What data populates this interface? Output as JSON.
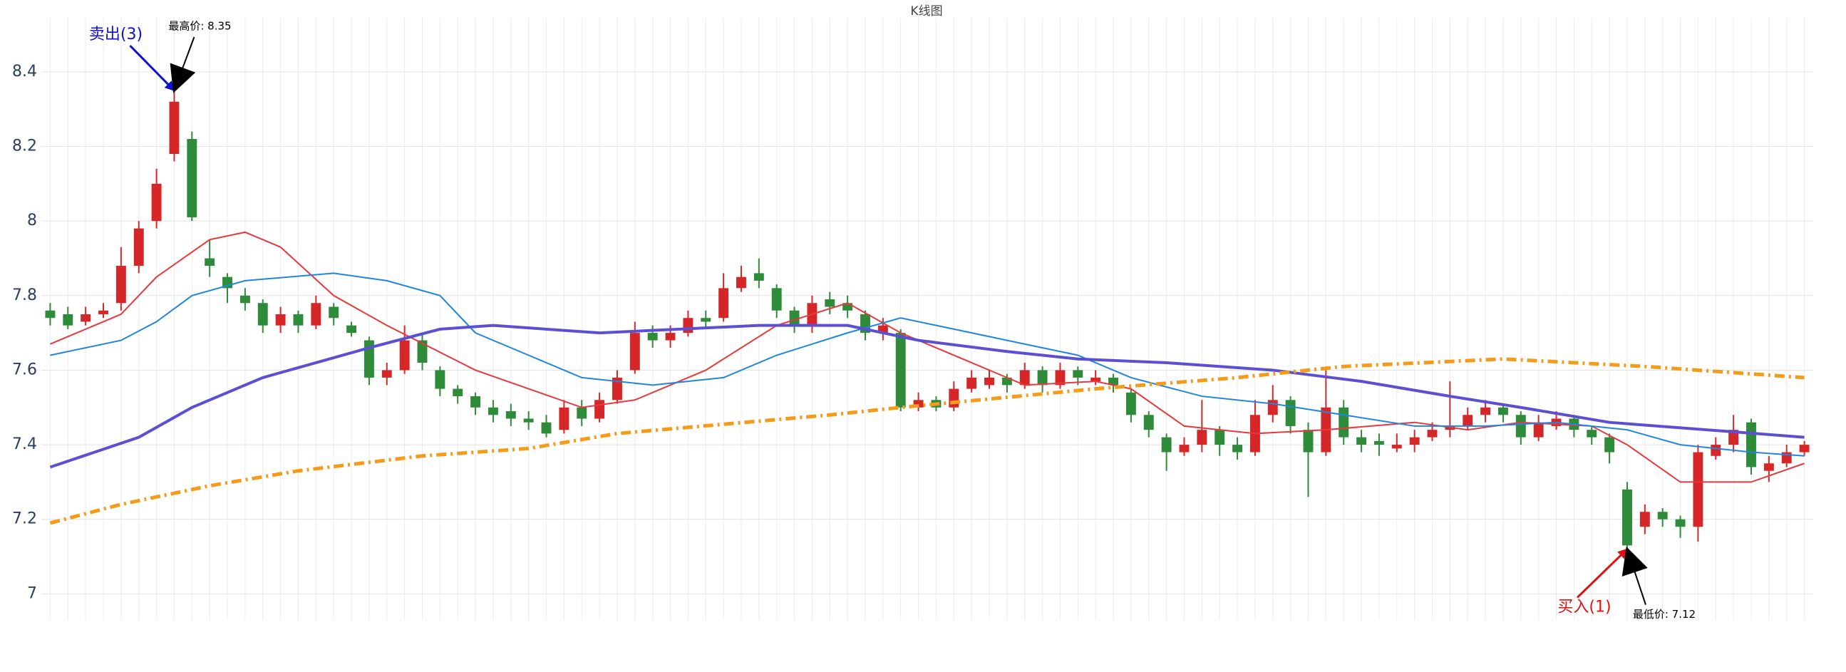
{
  "chart_data": {
    "type": "candlestick",
    "title": "K线图",
    "ylim": [
      6.93,
      8.545
    ],
    "yticks": [
      7,
      7.2,
      7.4,
      7.6,
      7.8,
      8,
      8.2,
      8.4
    ],
    "grid": true,
    "up_color": "#d62728",
    "down_color": "#2e8b3a",
    "open": [
      7.76,
      7.75,
      7.73,
      7.75,
      7.78,
      7.88,
      8.0,
      8.18,
      8.22,
      7.9,
      7.85,
      7.8,
      7.78,
      7.72,
      7.75,
      7.72,
      7.77,
      7.72,
      7.68,
      7.58,
      7.6,
      7.68,
      7.6,
      7.55,
      7.53,
      7.5,
      7.49,
      7.47,
      7.46,
      7.44,
      7.5,
      7.47,
      7.52,
      7.6,
      7.7,
      7.68,
      7.7,
      7.74,
      7.74,
      7.82,
      7.86,
      7.82,
      7.76,
      7.72,
      7.79,
      7.78,
      7.75,
      7.7,
      7.7,
      7.5,
      7.52,
      7.5,
      7.55,
      7.56,
      7.58,
      7.56,
      7.6,
      7.56,
      7.6,
      7.57,
      7.58,
      7.54,
      7.48,
      7.42,
      7.38,
      7.4,
      7.44,
      7.4,
      7.38,
      7.48,
      7.52,
      7.44,
      7.38,
      7.5,
      7.42,
      7.41,
      7.39,
      7.4,
      7.42,
      7.44,
      7.45,
      7.48,
      7.5,
      7.48,
      7.42,
      7.45,
      7.47,
      7.44,
      7.42,
      7.28,
      7.18,
      7.22,
      7.2,
      7.18,
      7.37,
      7.4,
      7.46,
      7.33,
      7.35,
      7.38
    ],
    "high": [
      7.78,
      7.77,
      7.77,
      7.78,
      7.93,
      8.0,
      8.14,
      8.35,
      8.24,
      7.95,
      7.86,
      7.82,
      7.79,
      7.77,
      7.76,
      7.8,
      7.78,
      7.73,
      7.69,
      7.62,
      7.72,
      7.7,
      7.61,
      7.56,
      7.54,
      7.52,
      7.51,
      7.49,
      7.48,
      7.52,
      7.52,
      7.54,
      7.6,
      7.73,
      7.72,
      7.72,
      7.76,
      7.76,
      7.86,
      7.88,
      7.9,
      7.83,
      7.77,
      7.8,
      7.81,
      7.8,
      7.76,
      7.74,
      7.71,
      7.54,
      7.53,
      7.57,
      7.6,
      7.6,
      7.59,
      7.62,
      7.61,
      7.62,
      7.61,
      7.6,
      7.59,
      7.55,
      7.49,
      7.43,
      7.42,
      7.52,
      7.45,
      7.42,
      7.52,
      7.56,
      7.53,
      7.46,
      7.6,
      7.52,
      7.44,
      7.43,
      7.43,
      7.44,
      7.46,
      7.57,
      7.5,
      7.52,
      7.51,
      7.49,
      7.48,
      7.49,
      7.48,
      7.45,
      7.43,
      7.3,
      7.24,
      7.23,
      7.21,
      7.4,
      7.42,
      7.48,
      7.47,
      7.37,
      7.4,
      7.41
    ],
    "low": [
      7.72,
      7.71,
      7.72,
      7.74,
      7.76,
      7.86,
      7.98,
      8.16,
      8.0,
      7.85,
      7.78,
      7.76,
      7.7,
      7.7,
      7.7,
      7.71,
      7.72,
      7.69,
      7.56,
      7.56,
      7.59,
      7.6,
      7.53,
      7.51,
      7.48,
      7.46,
      7.45,
      7.44,
      7.42,
      7.43,
      7.45,
      7.46,
      7.51,
      7.59,
      7.66,
      7.66,
      7.69,
      7.71,
      7.73,
      7.81,
      7.82,
      7.74,
      7.7,
      7.7,
      7.75,
      7.74,
      7.68,
      7.68,
      7.49,
      7.49,
      7.49,
      7.49,
      7.54,
      7.55,
      7.54,
      7.55,
      7.54,
      7.55,
      7.56,
      7.56,
      7.54,
      7.46,
      7.42,
      7.33,
      7.37,
      7.38,
      7.37,
      7.36,
      7.37,
      7.46,
      7.43,
      7.26,
      7.37,
      7.4,
      7.38,
      7.37,
      7.38,
      7.38,
      7.41,
      7.42,
      7.44,
      7.46,
      7.46,
      7.4,
      7.41,
      7.44,
      7.42,
      7.4,
      7.35,
      7.12,
      7.16,
      7.18,
      7.15,
      7.14,
      7.36,
      7.38,
      7.32,
      7.3,
      7.34,
      7.37
    ],
    "close": [
      7.74,
      7.72,
      7.75,
      7.76,
      7.88,
      7.98,
      8.1,
      8.32,
      8.01,
      7.88,
      7.82,
      7.78,
      7.72,
      7.75,
      7.72,
      7.78,
      7.74,
      7.7,
      7.58,
      7.6,
      7.68,
      7.62,
      7.55,
      7.53,
      7.5,
      7.48,
      7.47,
      7.46,
      7.43,
      7.5,
      7.47,
      7.52,
      7.58,
      7.7,
      7.68,
      7.7,
      7.74,
      7.73,
      7.82,
      7.85,
      7.84,
      7.76,
      7.72,
      7.78,
      7.77,
      7.76,
      7.7,
      7.72,
      7.5,
      7.52,
      7.5,
      7.55,
      7.58,
      7.58,
      7.56,
      7.6,
      7.56,
      7.6,
      7.58,
      7.58,
      7.56,
      7.48,
      7.44,
      7.38,
      7.4,
      7.44,
      7.4,
      7.38,
      7.48,
      7.52,
      7.45,
      7.38,
      7.5,
      7.42,
      7.4,
      7.4,
      7.4,
      7.42,
      7.44,
      7.45,
      7.48,
      7.5,
      7.48,
      7.42,
      7.46,
      7.47,
      7.44,
      7.42,
      7.38,
      7.13,
      7.22,
      7.2,
      7.18,
      7.38,
      7.4,
      7.44,
      7.34,
      7.35,
      7.38,
      7.4
    ],
    "lines": [
      {
        "color": "#e8383d",
        "style": "solid",
        "x": [
          0,
          4,
          6,
          9,
          11,
          13,
          16,
          19,
          24,
          30,
          33,
          37,
          41,
          45,
          48,
          52,
          55,
          59,
          61,
          64,
          68,
          72,
          77,
          80,
          83,
          87,
          89,
          92,
          96,
          99
        ],
        "values": [
          7.67,
          7.75,
          7.85,
          7.95,
          7.97,
          7.93,
          7.8,
          7.72,
          7.6,
          7.5,
          7.52,
          7.6,
          7.72,
          7.78,
          7.7,
          7.62,
          7.56,
          7.57,
          7.55,
          7.45,
          7.43,
          7.44,
          7.46,
          7.44,
          7.46,
          7.45,
          7.4,
          7.3,
          7.3,
          7.35
        ]
      },
      {
        "color": "#1f86e0",
        "style": "solid",
        "x": [
          0,
          4,
          6,
          8,
          11,
          16,
          19,
          22,
          24,
          27,
          30,
          34,
          38,
          41,
          45,
          48,
          50,
          54,
          58,
          61,
          65,
          69,
          73,
          77,
          81,
          85,
          89,
          92,
          96,
          99
        ],
        "values": [
          7.64,
          7.68,
          7.73,
          7.8,
          7.84,
          7.86,
          7.84,
          7.8,
          7.7,
          7.64,
          7.58,
          7.56,
          7.58,
          7.64,
          7.7,
          7.74,
          7.72,
          7.68,
          7.64,
          7.58,
          7.53,
          7.51,
          7.48,
          7.45,
          7.45,
          7.46,
          7.44,
          7.4,
          7.38,
          7.37
        ]
      },
      {
        "color": "#5b4fd3",
        "style": "solid",
        "x": [
          0,
          5,
          8,
          12,
          18,
          22,
          25,
          31,
          40,
          45,
          49,
          54,
          58,
          63,
          69,
          74,
          79,
          83,
          88,
          99
        ],
        "values": [
          7.34,
          7.42,
          7.5,
          7.58,
          7.66,
          7.71,
          7.72,
          7.7,
          7.72,
          7.72,
          7.68,
          7.65,
          7.63,
          7.62,
          7.6,
          7.57,
          7.53,
          7.5,
          7.46,
          7.42
        ]
      },
      {
        "color": "#f59b1a",
        "style": "dashdot",
        "x": [
          0,
          4,
          9,
          14,
          21,
          27,
          32,
          44,
          48,
          59,
          67,
          73,
          82,
          90,
          99
        ],
        "values": [
          7.19,
          7.24,
          7.29,
          7.33,
          7.37,
          7.39,
          7.43,
          7.48,
          7.5,
          7.55,
          7.58,
          7.61,
          7.63,
          7.61,
          7.58
        ]
      }
    ],
    "annotations": [
      {
        "text": "卖出(3)",
        "index": 7,
        "value": 8.35,
        "color": "#1010d0"
      },
      {
        "text": "最高价: 8.35",
        "index": 7,
        "value": 8.35,
        "color": "#000000"
      },
      {
        "text": "买入(1)",
        "index": 89,
        "value": 7.12,
        "color": "#e01010"
      },
      {
        "text": "最低价: 7.12",
        "index": 89,
        "value": 7.12,
        "color": "#000000"
      }
    ]
  }
}
